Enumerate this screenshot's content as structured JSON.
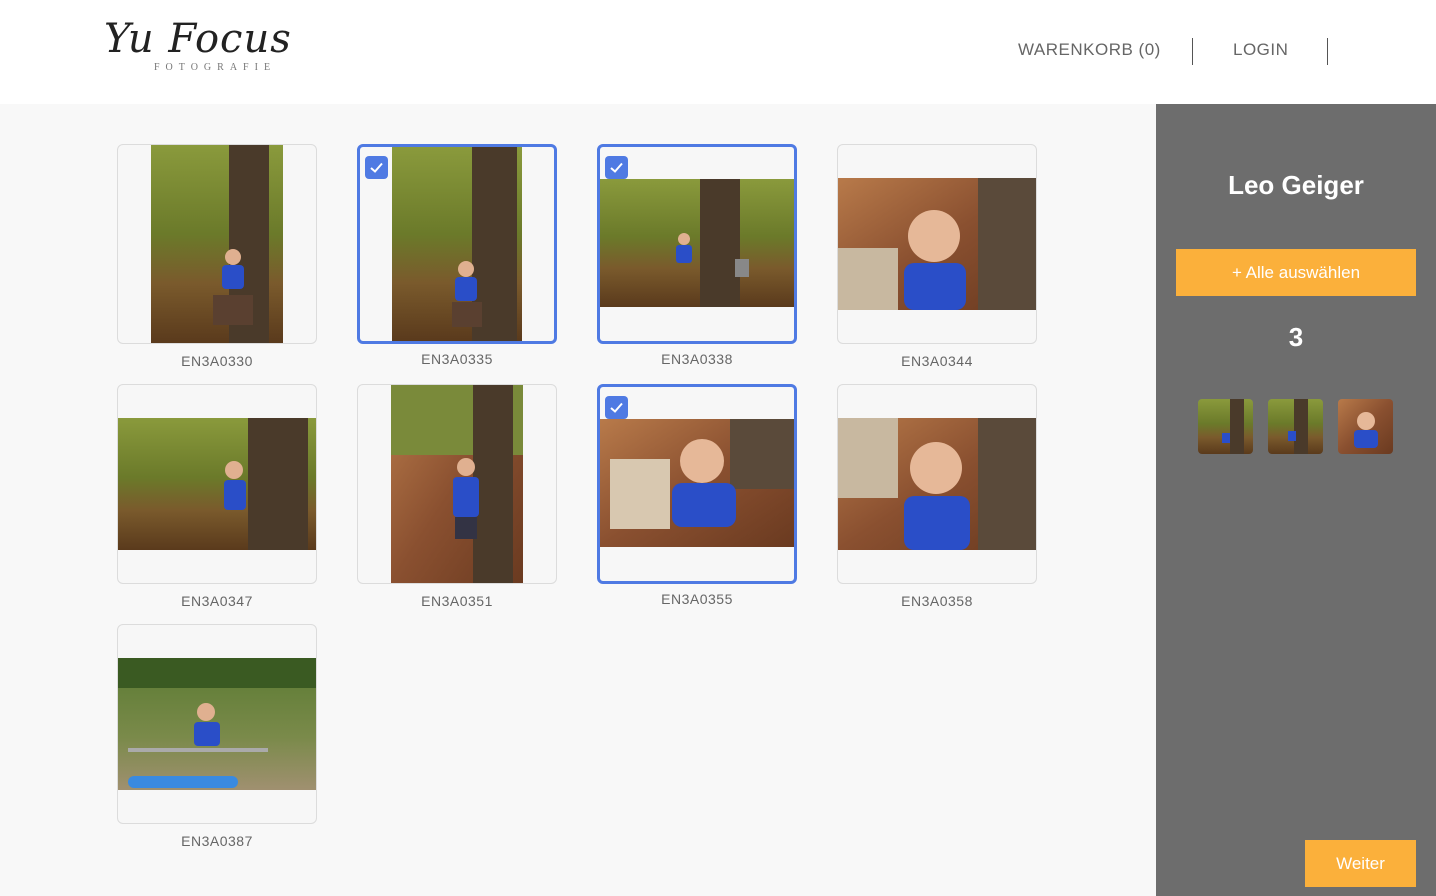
{
  "header": {
    "logo_script": "Yu Focus",
    "logo_sub": "FOTOGRAFIE",
    "cart_label": "WARENKORB (0)",
    "login_label": "LOGIN"
  },
  "gallery": {
    "photos": [
      {
        "id": "EN3A0330",
        "selected": false
      },
      {
        "id": "EN3A0335",
        "selected": true
      },
      {
        "id": "EN3A0338",
        "selected": true
      },
      {
        "id": "EN3A0344",
        "selected": false
      },
      {
        "id": "EN3A0347",
        "selected": false
      },
      {
        "id": "EN3A0351",
        "selected": false
      },
      {
        "id": "EN3A0355",
        "selected": true
      },
      {
        "id": "EN3A0358",
        "selected": false
      },
      {
        "id": "EN3A0387",
        "selected": false
      }
    ]
  },
  "sidebar": {
    "name": "Leo Geiger",
    "select_all_label": "+ Alle auswählen",
    "selected_count": "3",
    "next_label": "Weiter"
  },
  "colors": {
    "accent": "#fbb03b",
    "selection": "#4f7ae3",
    "sidebar_bg": "#6d6d6d"
  }
}
